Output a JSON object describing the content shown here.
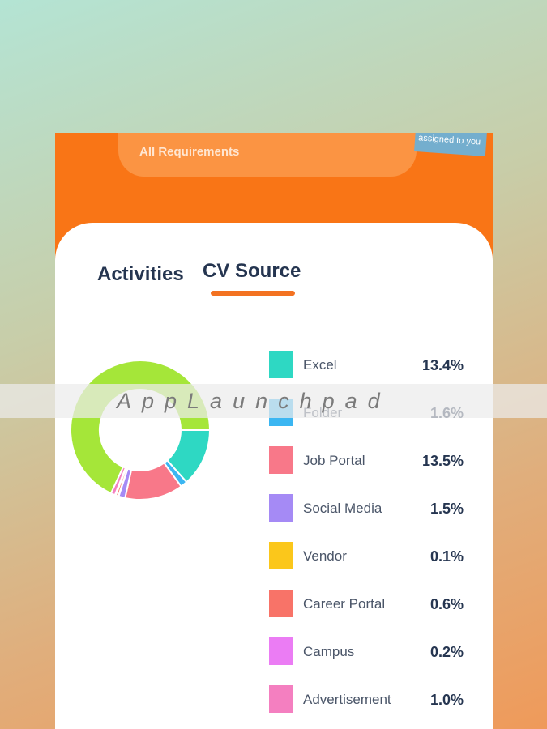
{
  "header": {
    "card_label": "All Requirements",
    "tag_label": "assigned to you"
  },
  "tabs": [
    {
      "label": "Activities",
      "active": false
    },
    {
      "label": "CV Source",
      "active": true
    }
  ],
  "colors": {
    "accent": "#f97516",
    "tab_indicator": "#f37221"
  },
  "chart_data": {
    "type": "pie",
    "categories": [
      "Excel",
      "Folder",
      "Job Portal",
      "Social Media",
      "Vendor",
      "Career Portal",
      "Campus",
      "Advertisement"
    ],
    "labels": [
      "13.4%",
      "1.6%",
      "13.5%",
      "1.5%",
      "0.1%",
      "0.6%",
      "0.2%",
      "1.0%"
    ],
    "values": [
      13.4,
      1.6,
      13.5,
      1.5,
      0.1,
      0.6,
      0.2,
      1.0
    ],
    "colors": [
      "#2ed8c3",
      "#3bb6f2",
      "#f87889",
      "#a58af5",
      "#fbc71b",
      "#f87368",
      "#eb7cf4",
      "#f47fc0"
    ],
    "remainder": {
      "value": 68.1,
      "color": "#a5e639"
    },
    "legend_position": "right"
  },
  "watermark": "AppLaunchpad"
}
